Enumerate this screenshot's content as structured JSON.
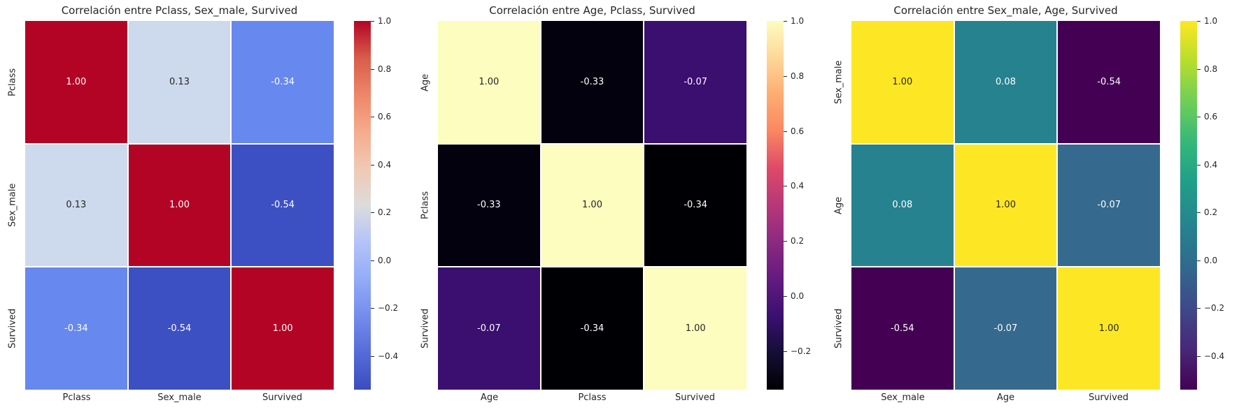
{
  "figure": {
    "background": "#ffffff"
  },
  "panels": [
    {
      "title": "Correlación entre Pclass, Sex_male, Survived",
      "row_labels": [
        "Pclass",
        "Sex_male",
        "Survived"
      ],
      "col_labels": [
        "Pclass",
        "Sex_male",
        "Survived"
      ],
      "cells": [
        {
          "label": "1.00",
          "color": "#b40426",
          "text_color": "#ffffff"
        },
        {
          "label": "0.13",
          "color": "#cdd9ec",
          "text_color": "#262626"
        },
        {
          "label": "-0.34",
          "color": "#6788ee",
          "text_color": "#ffffff"
        },
        {
          "label": "0.13",
          "color": "#cdd9ec",
          "text_color": "#262626"
        },
        {
          "label": "1.00",
          "color": "#b40426",
          "text_color": "#ffffff"
        },
        {
          "label": "-0.54",
          "color": "#3d50c3",
          "text_color": "#ffffff"
        },
        {
          "label": "-0.34",
          "color": "#6788ee",
          "text_color": "#ffffff"
        },
        {
          "label": "-0.54",
          "color": "#3d50c3",
          "text_color": "#ffffff"
        },
        {
          "label": "1.00",
          "color": "#b40426",
          "text_color": "#ffffff"
        }
      ],
      "colorbar": {
        "colormap": "coolwarm",
        "vmin": -0.54,
        "vmax": 1.0,
        "tick_labels": [
          "1.0",
          "0.8",
          "0.6",
          "0.4",
          "0.2",
          "0.0",
          "−0.2",
          "−0.4"
        ],
        "tick_values": [
          1.0,
          0.8,
          0.6,
          0.4,
          0.2,
          0.0,
          -0.2,
          -0.4
        ]
      }
    },
    {
      "title": "Correlación entre Age, Pclass, Survived",
      "row_labels": [
        "Age",
        "Pclass",
        "Survived"
      ],
      "col_labels": [
        "Age",
        "Pclass",
        "Survived"
      ],
      "cells": [
        {
          "label": "1.00",
          "color": "#fcfdbf",
          "text_color": "#262626"
        },
        {
          "label": "-0.33",
          "color": "#02010d",
          "text_color": "#ffffff"
        },
        {
          "label": "-0.07",
          "color": "#3b0f70",
          "text_color": "#ffffff"
        },
        {
          "label": "-0.33",
          "color": "#02010d",
          "text_color": "#ffffff"
        },
        {
          "label": "1.00",
          "color": "#fcfdbf",
          "text_color": "#262626"
        },
        {
          "label": "-0.34",
          "color": "#000004",
          "text_color": "#ffffff"
        },
        {
          "label": "-0.07",
          "color": "#3b0f70",
          "text_color": "#ffffff"
        },
        {
          "label": "-0.34",
          "color": "#000004",
          "text_color": "#ffffff"
        },
        {
          "label": "1.00",
          "color": "#fcfdbf",
          "text_color": "#262626"
        }
      ],
      "colorbar": {
        "colormap": "magma",
        "vmin": -0.34,
        "vmax": 1.0,
        "tick_labels": [
          "1.0",
          "0.8",
          "0.6",
          "0.4",
          "0.2",
          "0.0",
          "−0.2"
        ],
        "tick_values": [
          1.0,
          0.8,
          0.6,
          0.4,
          0.2,
          0.0,
          -0.2
        ]
      }
    },
    {
      "title": "Correlación entre Sex_male, Age, Survived",
      "row_labels": [
        "Sex_male",
        "Age",
        "Survived"
      ],
      "col_labels": [
        "Sex_male",
        "Age",
        "Survived"
      ],
      "cells": [
        {
          "label": "1.00",
          "color": "#fde725",
          "text_color": "#262626"
        },
        {
          "label": "0.08",
          "color": "#26828e",
          "text_color": "#ffffff"
        },
        {
          "label": "-0.54",
          "color": "#440154",
          "text_color": "#ffffff"
        },
        {
          "label": "0.08",
          "color": "#26828e",
          "text_color": "#ffffff"
        },
        {
          "label": "1.00",
          "color": "#fde725",
          "text_color": "#262626"
        },
        {
          "label": "-0.07",
          "color": "#356a8e",
          "text_color": "#ffffff"
        },
        {
          "label": "-0.54",
          "color": "#440154",
          "text_color": "#ffffff"
        },
        {
          "label": "-0.07",
          "color": "#356a8e",
          "text_color": "#ffffff"
        },
        {
          "label": "1.00",
          "color": "#fde725",
          "text_color": "#262626"
        }
      ],
      "colorbar": {
        "colormap": "viridis",
        "vmin": -0.54,
        "vmax": 1.0,
        "tick_labels": [
          "1.0",
          "0.8",
          "0.6",
          "0.4",
          "0.2",
          "0.0",
          "−0.2",
          "−0.4"
        ],
        "tick_values": [
          1.0,
          0.8,
          0.6,
          0.4,
          0.2,
          0.0,
          -0.2,
          -0.4
        ]
      }
    }
  ],
  "chart_data": [
    {
      "type": "heatmap",
      "title": "Correlación entre Pclass, Sex_male, Survived",
      "x_categories": [
        "Pclass",
        "Sex_male",
        "Survived"
      ],
      "y_categories": [
        "Pclass",
        "Sex_male",
        "Survived"
      ],
      "values": [
        [
          1.0,
          0.13,
          -0.34
        ],
        [
          0.13,
          1.0,
          -0.54
        ],
        [
          -0.34,
          -0.54,
          1.0
        ]
      ],
      "colormap": "coolwarm",
      "color_range": [
        -0.54,
        1.0
      ],
      "colorbar_ticks": [
        1.0,
        0.8,
        0.6,
        0.4,
        0.2,
        0.0,
        -0.2,
        -0.4
      ],
      "colorbar_position": "right",
      "annotations": true
    },
    {
      "type": "heatmap",
      "title": "Correlación entre Age, Pclass, Survived",
      "x_categories": [
        "Age",
        "Pclass",
        "Survived"
      ],
      "y_categories": [
        "Age",
        "Pclass",
        "Survived"
      ],
      "values": [
        [
          1.0,
          -0.33,
          -0.07
        ],
        [
          -0.33,
          1.0,
          -0.34
        ],
        [
          -0.07,
          -0.34,
          1.0
        ]
      ],
      "colormap": "magma",
      "color_range": [
        -0.34,
        1.0
      ],
      "colorbar_ticks": [
        1.0,
        0.8,
        0.6,
        0.4,
        0.2,
        0.0,
        -0.2
      ],
      "colorbar_position": "right",
      "annotations": true
    },
    {
      "type": "heatmap",
      "title": "Correlación entre Sex_male, Age, Survived",
      "x_categories": [
        "Sex_male",
        "Age",
        "Survived"
      ],
      "y_categories": [
        "Sex_male",
        "Age",
        "Survived"
      ],
      "values": [
        [
          1.0,
          0.08,
          -0.54
        ],
        [
          0.08,
          1.0,
          -0.07
        ],
        [
          -0.54,
          -0.07,
          1.0
        ]
      ],
      "colormap": "viridis",
      "color_range": [
        -0.54,
        1.0
      ],
      "colorbar_ticks": [
        1.0,
        0.8,
        0.6,
        0.4,
        0.2,
        0.0,
        -0.2,
        -0.4
      ],
      "colorbar_position": "right",
      "annotations": true
    }
  ]
}
